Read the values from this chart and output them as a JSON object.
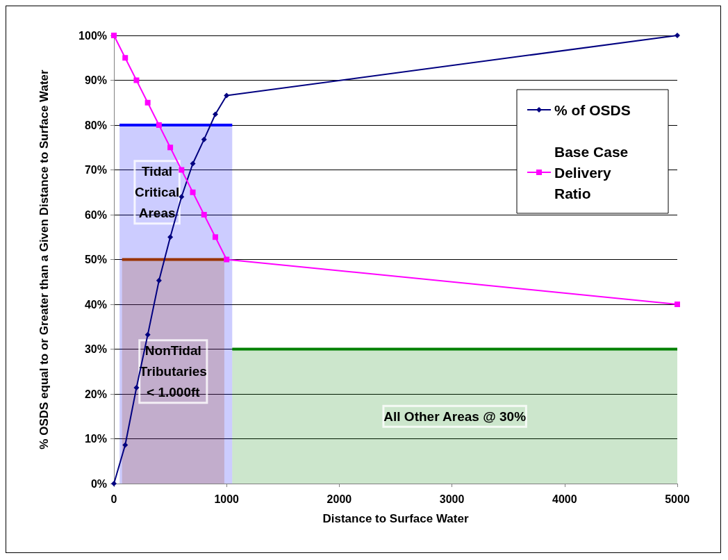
{
  "chart_data": {
    "type": "line",
    "xlabel": "Distance to Surface Water",
    "ylabel": "% OSDS equal to or Greater than a Given Distance to Surface Water",
    "xlim": [
      0,
      5000
    ],
    "xticks": [
      0,
      1000,
      2000,
      3000,
      4000,
      5000
    ],
    "ylim": [
      0,
      100
    ],
    "yticks": [
      {
        "value": 0,
        "label": "0%"
      },
      {
        "value": 10,
        "label": "10%"
      },
      {
        "value": 20,
        "label": "20%"
      },
      {
        "value": 30,
        "label": "30%"
      },
      {
        "value": 40,
        "label": "40%"
      },
      {
        "value": 50,
        "label": "50%"
      },
      {
        "value": 60,
        "label": "60%"
      },
      {
        "value": 70,
        "label": "70%"
      },
      {
        "value": 80,
        "label": "80%"
      },
      {
        "value": 90,
        "label": "90%"
      },
      {
        "value": 100,
        "label": "100%"
      }
    ],
    "grid": "y",
    "legend": "top right",
    "series": [
      {
        "type": "area",
        "color": "#0000ff",
        "marker": "none",
        "x": [
          50,
          1050
        ],
        "values": [
          80,
          80
        ]
      },
      {
        "type": "area",
        "color": "#993300",
        "marker": "none",
        "x": [
          72,
          980
        ],
        "values": [
          50,
          50
        ]
      },
      {
        "type": "area",
        "color": "#008000",
        "marker": "none",
        "x": [
          1050,
          5000
        ],
        "values": [
          30,
          30
        ]
      },
      {
        "name": "% of OSDS",
        "color": "#000080",
        "marker": "diamond",
        "x": [
          0,
          100,
          200,
          300,
          400,
          500,
          600,
          700,
          800,
          900,
          1000,
          5000
        ],
        "values": [
          0,
          8.6,
          21.4,
          33.2,
          45.3,
          55,
          64,
          71.4,
          76.8,
          82.4,
          86.6,
          100
        ]
      },
      {
        "name": "Base Case Delivery Ratio",
        "color": "#ff00ff",
        "marker": "square",
        "x": [
          0,
          100,
          200,
          300,
          400,
          500,
          600,
          700,
          800,
          900,
          1000,
          5000
        ],
        "values": [
          100,
          95,
          90,
          85,
          80,
          75,
          70,
          65,
          60,
          55,
          50,
          40
        ]
      }
    ],
    "annotations": [
      "Tidal\nCritical\nAreas",
      "NonTidal\nTributaries\n< 1.000ft",
      "All Other Areas @ 30%"
    ]
  }
}
